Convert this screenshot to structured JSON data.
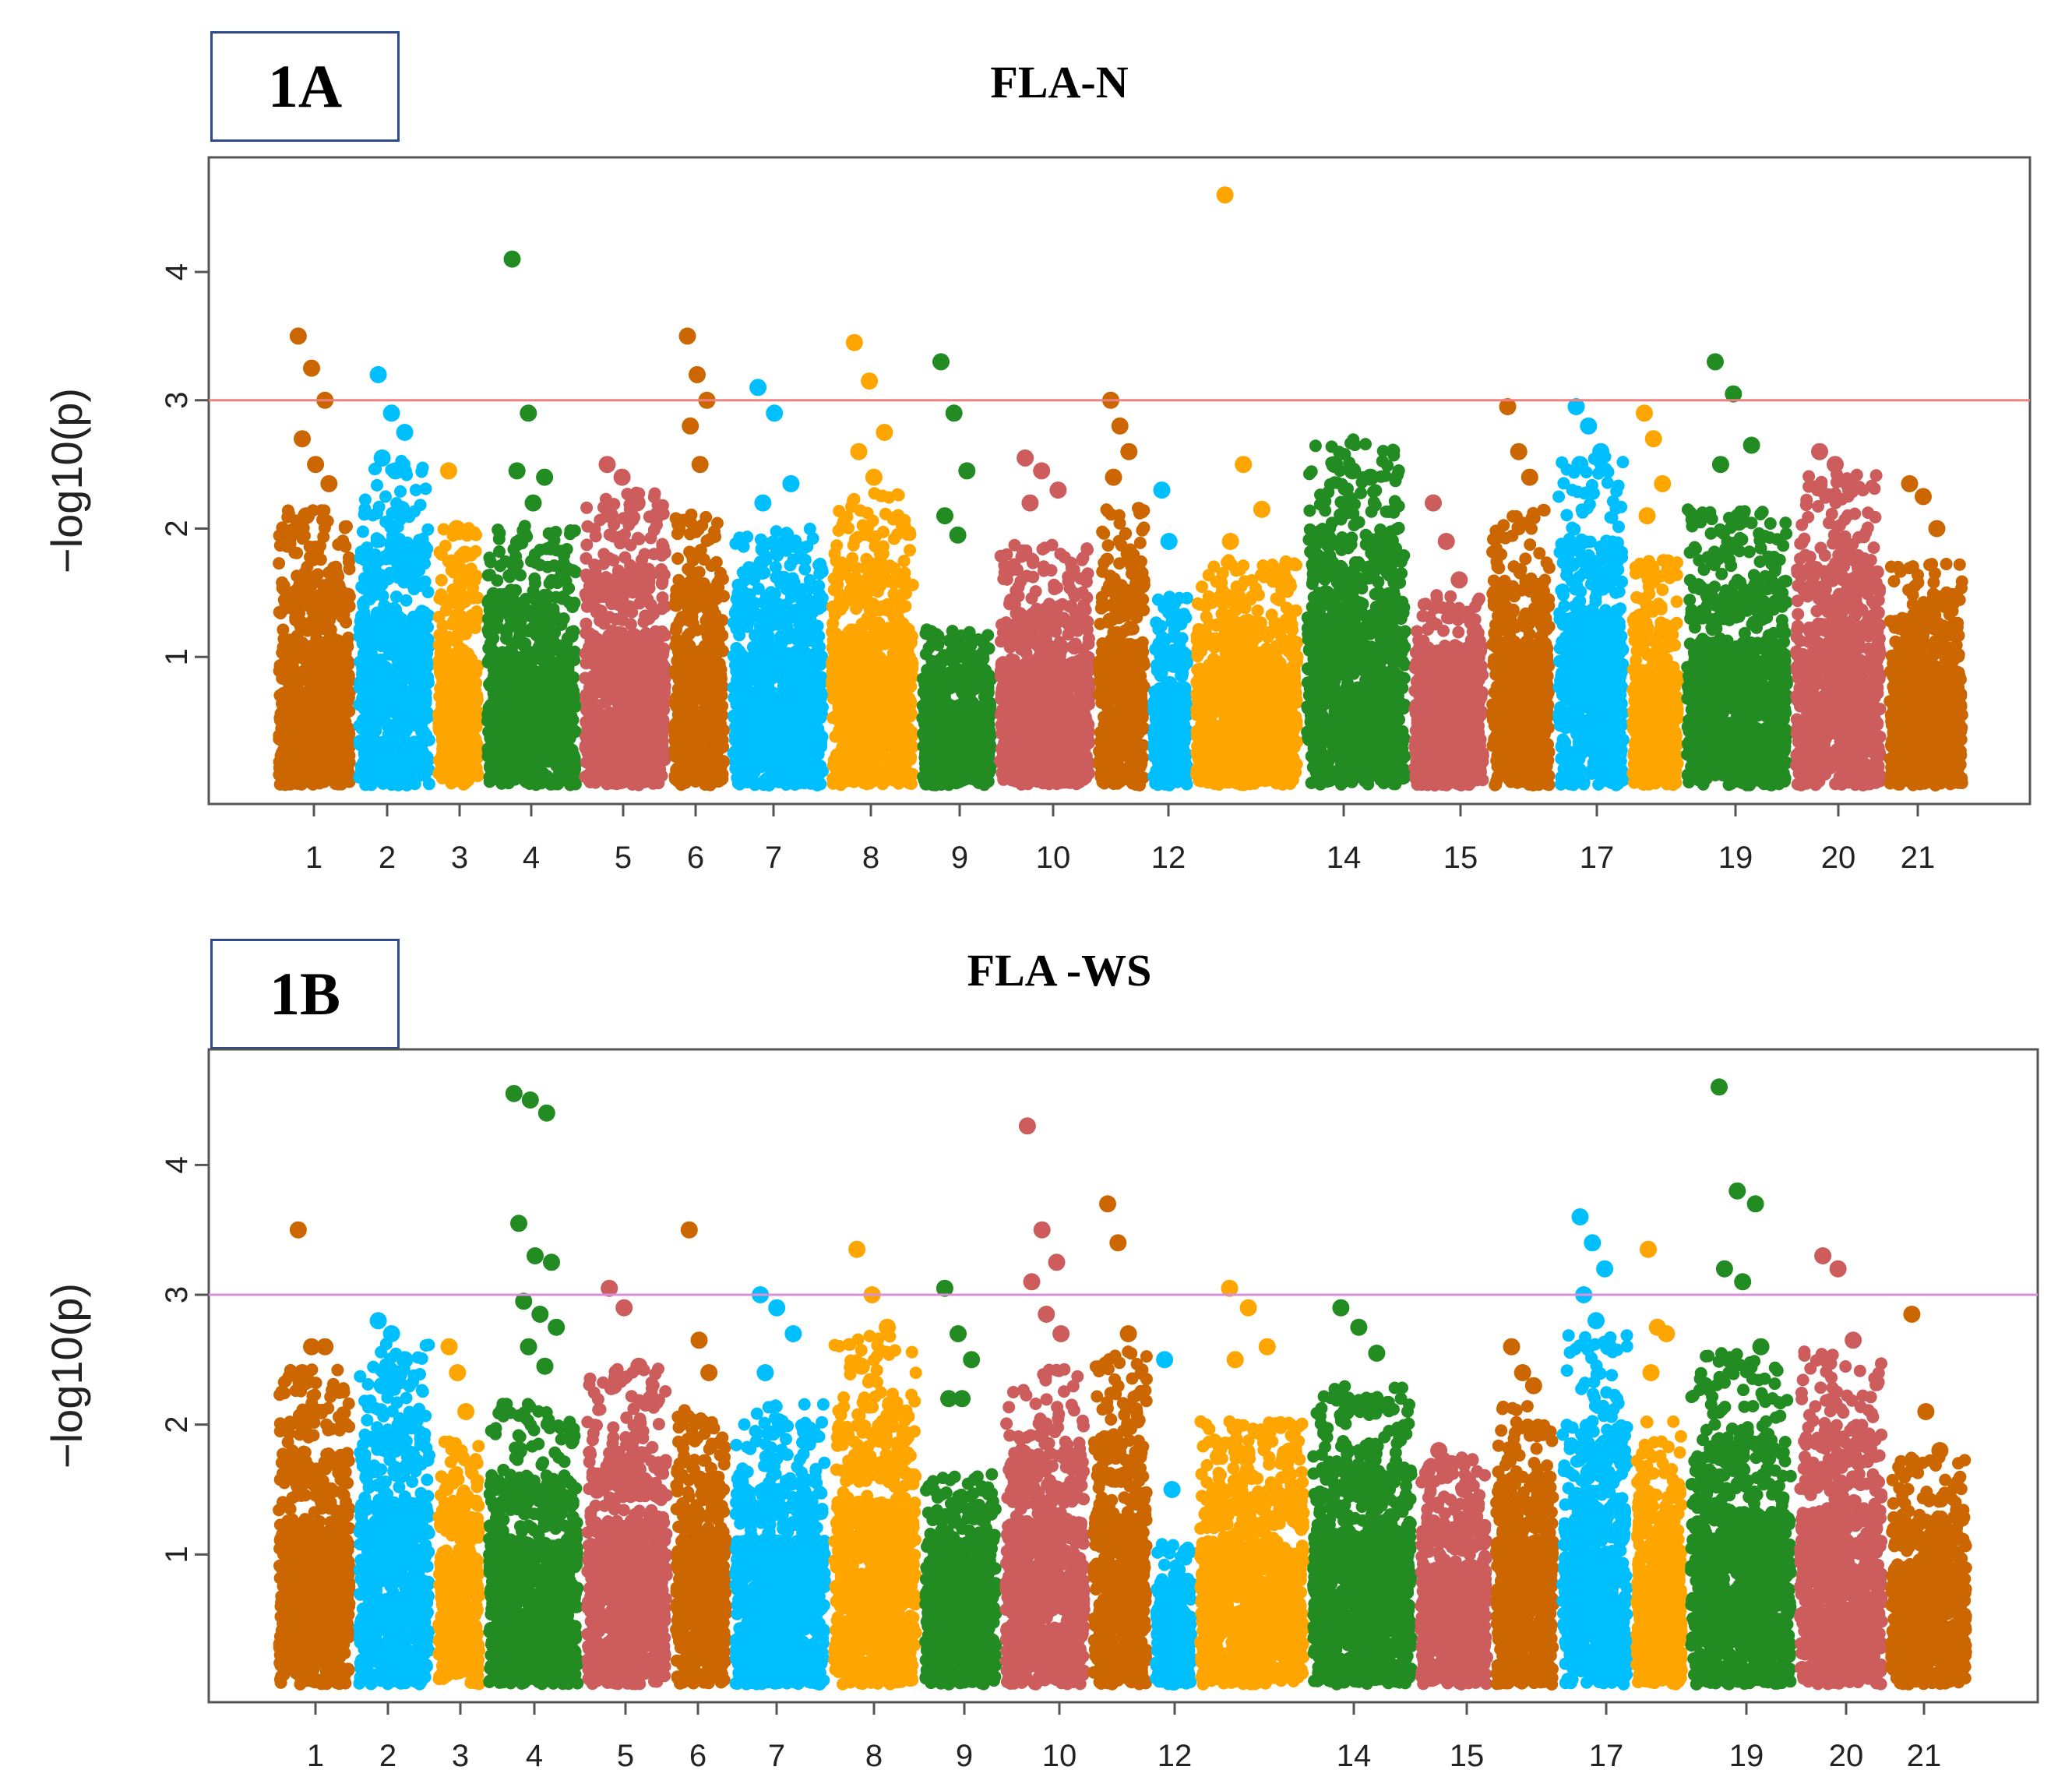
{
  "chart_data": [
    {
      "panel_label": "1A",
      "title": "FLA-N",
      "type": "scatter",
      "subtype": "manhattan",
      "ylabel": "−log10(p)",
      "ylim": [
        0,
        4.8
      ],
      "yticks": [
        1,
        2,
        3,
        4
      ],
      "threshold": 3.0,
      "threshold_color": "#f08080",
      "x_tick_labels": [
        "1",
        "2",
        "3",
        "4",
        "5",
        "6",
        "7",
        "8",
        "9",
        "10",
        "12",
        "14",
        "15",
        "17",
        "19",
        "20",
        "21"
      ],
      "chromosomes": [
        {
          "chr": "1",
          "color": "#cc6600",
          "base": 1.6,
          "peaks": [
            3.5,
            3.25,
            3.0,
            2.7,
            2.5,
            2.35,
            2.1
          ]
        },
        {
          "chr": "2",
          "color": "#00bfff",
          "base": 1.9,
          "peaks": [
            3.2,
            2.9,
            2.75,
            2.55,
            2.45
          ]
        },
        {
          "chr": "3",
          "color": "#ffa500",
          "base": 1.5,
          "peaks": [
            2.45,
            2.0,
            1.8
          ]
        },
        {
          "chr": "4",
          "color": "#228b22",
          "base": 1.5,
          "peaks": [
            4.1,
            2.9,
            2.4,
            2.45,
            2.2
          ]
        },
        {
          "chr": "5",
          "color": "#cd5c5c",
          "base": 1.7,
          "peaks": [
            2.5,
            2.4,
            2.2
          ]
        },
        {
          "chr": "6",
          "color": "#cc6600",
          "base": 1.6,
          "peaks": [
            3.5,
            3.2,
            3.0,
            2.8,
            2.5
          ]
        },
        {
          "chr": "7",
          "color": "#00bfff",
          "base": 1.5,
          "peaks": [
            3.1,
            2.9,
            2.35,
            2.2
          ]
        },
        {
          "chr": "8",
          "color": "#ffa500",
          "base": 1.7,
          "peaks": [
            3.45,
            3.15,
            2.75,
            2.6,
            2.4
          ]
        },
        {
          "chr": "9",
          "color": "#228b22",
          "base": 0.9,
          "peaks": [
            3.3,
            2.9,
            2.45,
            2.1,
            1.95
          ]
        },
        {
          "chr": "10",
          "color": "#cd5c5c",
          "base": 1.4,
          "peaks": [
            2.55,
            2.45,
            2.3,
            2.2
          ]
        },
        {
          "chr": "11",
          "color": "#cc6600",
          "base": 1.6,
          "peaks": [
            3.0,
            2.8,
            2.6,
            2.4
          ]
        },
        {
          "chr": "12",
          "color": "#00bfff",
          "base": 1.1,
          "peaks": [
            2.3,
            1.9
          ]
        },
        {
          "chr": "13",
          "color": "#ffa500",
          "base": 1.3,
          "peaks": [
            4.6,
            2.5,
            2.15,
            1.9
          ]
        },
        {
          "chr": "14",
          "color": "#228b22",
          "base": 2.0,
          "peaks": [
            2.5,
            2.45,
            2.4
          ]
        },
        {
          "chr": "15",
          "color": "#cd5c5c",
          "base": 1.1,
          "peaks": [
            2.2,
            1.9,
            1.6
          ]
        },
        {
          "chr": "16",
          "color": "#cc6600",
          "base": 1.6,
          "peaks": [
            2.95,
            2.6,
            2.4
          ]
        },
        {
          "chr": "17",
          "color": "#00bfff",
          "base": 1.9,
          "peaks": [
            2.95,
            2.8,
            2.6,
            2.5
          ]
        },
        {
          "chr": "18",
          "color": "#ffa500",
          "base": 1.3,
          "peaks": [
            2.9,
            2.7,
            2.35,
            2.1
          ]
        },
        {
          "chr": "19",
          "color": "#228b22",
          "base": 1.6,
          "peaks": [
            3.3,
            3.05,
            2.65,
            2.5,
            2.05
          ]
        },
        {
          "chr": "20",
          "color": "#cd5c5c",
          "base": 1.8,
          "peaks": [
            2.6,
            2.5,
            2.3
          ]
        },
        {
          "chr": "21",
          "color": "#cc6600",
          "base": 1.3,
          "peaks": [
            2.35,
            2.25,
            2.0
          ]
        }
      ]
    },
    {
      "panel_label": "1B",
      "title": "FLA -WS",
      "type": "scatter",
      "subtype": "manhattan",
      "ylabel": "−log10(p)",
      "ylim": [
        0,
        4.8
      ],
      "yticks": [
        1,
        2,
        3,
        4
      ],
      "threshold": 3.0,
      "threshold_color": "#da8fda",
      "x_tick_labels": [
        "1",
        "2",
        "3",
        "4",
        "5",
        "6",
        "7",
        "8",
        "9",
        "10",
        "12",
        "14",
        "15",
        "17",
        "19",
        "20",
        "21"
      ],
      "chromosomes": [
        {
          "chr": "1",
          "color": "#cc6600",
          "base": 1.8,
          "peaks": [
            3.5,
            2.6,
            2.6,
            2.4,
            2.1
          ]
        },
        {
          "chr": "2",
          "color": "#00bfff",
          "base": 2.0,
          "peaks": [
            2.8,
            2.7,
            2.5,
            2.3
          ]
        },
        {
          "chr": "3",
          "color": "#ffa500",
          "base": 1.4,
          "peaks": [
            2.6,
            2.4,
            2.1
          ]
        },
        {
          "chr": "4",
          "color": "#228b22",
          "base": 1.6,
          "peaks": [
            4.55,
            4.5,
            4.4,
            3.55,
            3.3,
            3.25,
            2.95,
            2.85,
            2.75,
            2.6,
            2.45
          ]
        },
        {
          "chr": "5",
          "color": "#cd5c5c",
          "base": 1.8,
          "peaks": [
            3.05,
            2.9,
            2.45,
            2.3
          ]
        },
        {
          "chr": "6",
          "color": "#cc6600",
          "base": 1.6,
          "peaks": [
            3.5,
            2.65,
            2.4
          ]
        },
        {
          "chr": "7",
          "color": "#00bfff",
          "base": 1.6,
          "peaks": [
            3.0,
            2.9,
            2.7,
            2.4
          ]
        },
        {
          "chr": "8",
          "color": "#ffa500",
          "base": 2.0,
          "peaks": [
            3.35,
            3.0,
            2.75,
            2.45
          ]
        },
        {
          "chr": "9",
          "color": "#228b22",
          "base": 1.2,
          "peaks": [
            3.05,
            2.7,
            2.5,
            2.2,
            2.2
          ]
        },
        {
          "chr": "10",
          "color": "#cd5c5c",
          "base": 1.8,
          "peaks": [
            4.3,
            3.5,
            3.25,
            3.1,
            2.85,
            2.7
          ]
        },
        {
          "chr": "11",
          "color": "#cc6600",
          "base": 1.9,
          "peaks": [
            3.7,
            3.4,
            2.7
          ]
        },
        {
          "chr": "12",
          "color": "#00bfff",
          "base": 0.8,
          "peaks": [
            2.5,
            1.5
          ]
        },
        {
          "chr": "13",
          "color": "#ffa500",
          "base": 1.5,
          "peaks": [
            3.05,
            2.9,
            2.6,
            2.5
          ]
        },
        {
          "chr": "14",
          "color": "#228b22",
          "base": 1.7,
          "peaks": [
            2.9,
            2.75,
            2.55,
            2.1
          ]
        },
        {
          "chr": "15",
          "color": "#cd5c5c",
          "base": 1.3,
          "peaks": [
            1.8,
            1.7,
            1.5
          ]
        },
        {
          "chr": "16",
          "color": "#cc6600",
          "base": 1.6,
          "peaks": [
            2.6,
            2.4,
            2.3
          ]
        },
        {
          "chr": "17",
          "color": "#00bfff",
          "base": 2.0,
          "peaks": [
            3.6,
            3.4,
            3.2,
            3.0,
            2.8,
            2.6
          ]
        },
        {
          "chr": "18",
          "color": "#ffa500",
          "base": 1.5,
          "peaks": [
            3.35,
            2.75,
            2.7,
            2.4
          ]
        },
        {
          "chr": "19",
          "color": "#228b22",
          "base": 1.9,
          "peaks": [
            4.6,
            3.8,
            3.7,
            3.2,
            3.1,
            2.6,
            2.5
          ]
        },
        {
          "chr": "20",
          "color": "#cd5c5c",
          "base": 1.9,
          "peaks": [
            3.3,
            3.2,
            2.65,
            2.5
          ]
        },
        {
          "chr": "21",
          "color": "#cc6600",
          "base": 1.3,
          "peaks": [
            2.85,
            2.1,
            1.8
          ]
        }
      ]
    }
  ]
}
